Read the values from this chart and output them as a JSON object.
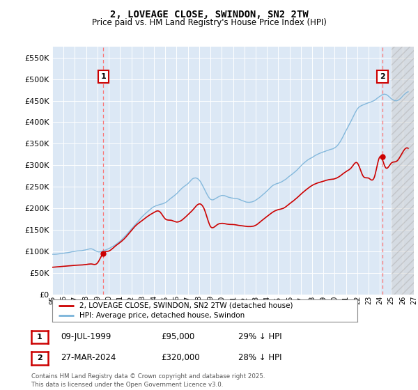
{
  "title": "2, LOVEAGE CLOSE, SWINDON, SN2 2TW",
  "subtitle": "Price paid vs. HM Land Registry's House Price Index (HPI)",
  "background_color": "#ffffff",
  "plot_bg_color": "#dce8f5",
  "grid_color": "#ffffff",
  "hpi_color": "#7ab3d9",
  "price_color": "#cc0000",
  "vline_color": "#ff6666",
  "ylim": [
    0,
    575000
  ],
  "yticks": [
    0,
    50000,
    100000,
    150000,
    200000,
    250000,
    300000,
    350000,
    400000,
    450000,
    500000,
    550000
  ],
  "sale1_year": 1999.53,
  "sale1_price": 95000,
  "sale1_label": "1",
  "sale2_year": 2024.23,
  "sale2_price": 320000,
  "sale2_label": "2",
  "legend_line1": "2, LOVEAGE CLOSE, SWINDON, SN2 2TW (detached house)",
  "legend_line2": "HPI: Average price, detached house, Swindon",
  "table_row1": [
    "1",
    "09-JUL-1999",
    "£95,000",
    "29% ↓ HPI"
  ],
  "table_row2": [
    "2",
    "27-MAR-2024",
    "£320,000",
    "28% ↓ HPI"
  ],
  "footnote": "Contains HM Land Registry data © Crown copyright and database right 2025.\nThis data is licensed under the Open Government Licence v3.0.",
  "xmin": 1995,
  "xmax": 2027
}
